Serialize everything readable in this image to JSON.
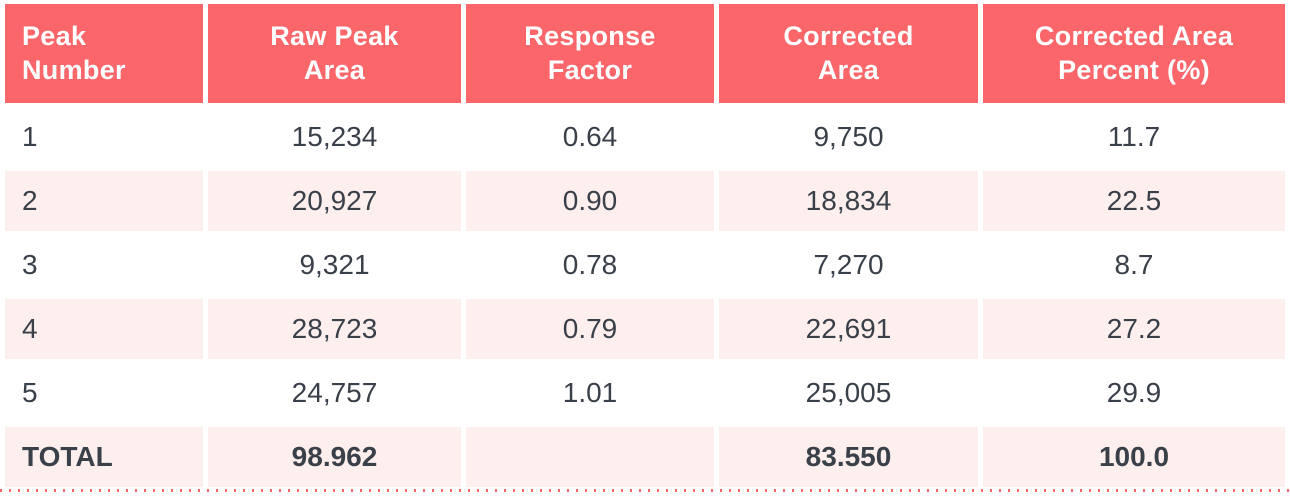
{
  "colors": {
    "header_background": "#fb666b",
    "header_text": "#ffffff",
    "alt_row_background": "#fdefed",
    "row_background": "#ffffff",
    "body_text": "#3a4049",
    "dotted_border": "#fb666b"
  },
  "table": {
    "columns": [
      {
        "label": "Peak\nNumber",
        "align": "left"
      },
      {
        "label": "Raw Peak\nArea",
        "align": "center"
      },
      {
        "label": "Response\nFactor",
        "align": "center"
      },
      {
        "label": "Corrected\nArea",
        "align": "center"
      },
      {
        "label": "Corrected Area\nPercent (%)",
        "align": "center"
      }
    ],
    "rows": [
      {
        "cells": [
          "1",
          "15,234",
          "0.64",
          "9,750",
          "11.7"
        ]
      },
      {
        "cells": [
          "2",
          "20,927",
          "0.90",
          "18,834",
          "22.5"
        ]
      },
      {
        "cells": [
          "3",
          "9,321",
          "0.78",
          "7,270",
          "8.7"
        ]
      },
      {
        "cells": [
          "4",
          "28,723",
          "0.79",
          "22,691",
          "27.2"
        ]
      },
      {
        "cells": [
          "5",
          "24,757",
          "1.01",
          "25,005",
          "29.9"
        ]
      }
    ],
    "total_row": {
      "cells": [
        "TOTAL",
        "98.962",
        "",
        "83.550",
        "100.0"
      ]
    }
  },
  "chart_data": {
    "type": "table",
    "title": "",
    "columns": [
      "Peak Number",
      "Raw Peak Area",
      "Response Factor",
      "Corrected Area",
      "Corrected Area Percent (%)"
    ],
    "rows": [
      [
        1,
        15234,
        0.64,
        9750,
        11.7
      ],
      [
        2,
        20927,
        0.9,
        18834,
        22.5
      ],
      [
        3,
        9321,
        0.78,
        7270,
        8.7
      ],
      [
        4,
        28723,
        0.79,
        22691,
        27.2
      ],
      [
        5,
        24757,
        1.01,
        25005,
        29.9
      ]
    ],
    "totals": {
      "raw_peak_area": "98.962",
      "corrected_area": "83.550",
      "corrected_area_percent": "100.0"
    }
  }
}
